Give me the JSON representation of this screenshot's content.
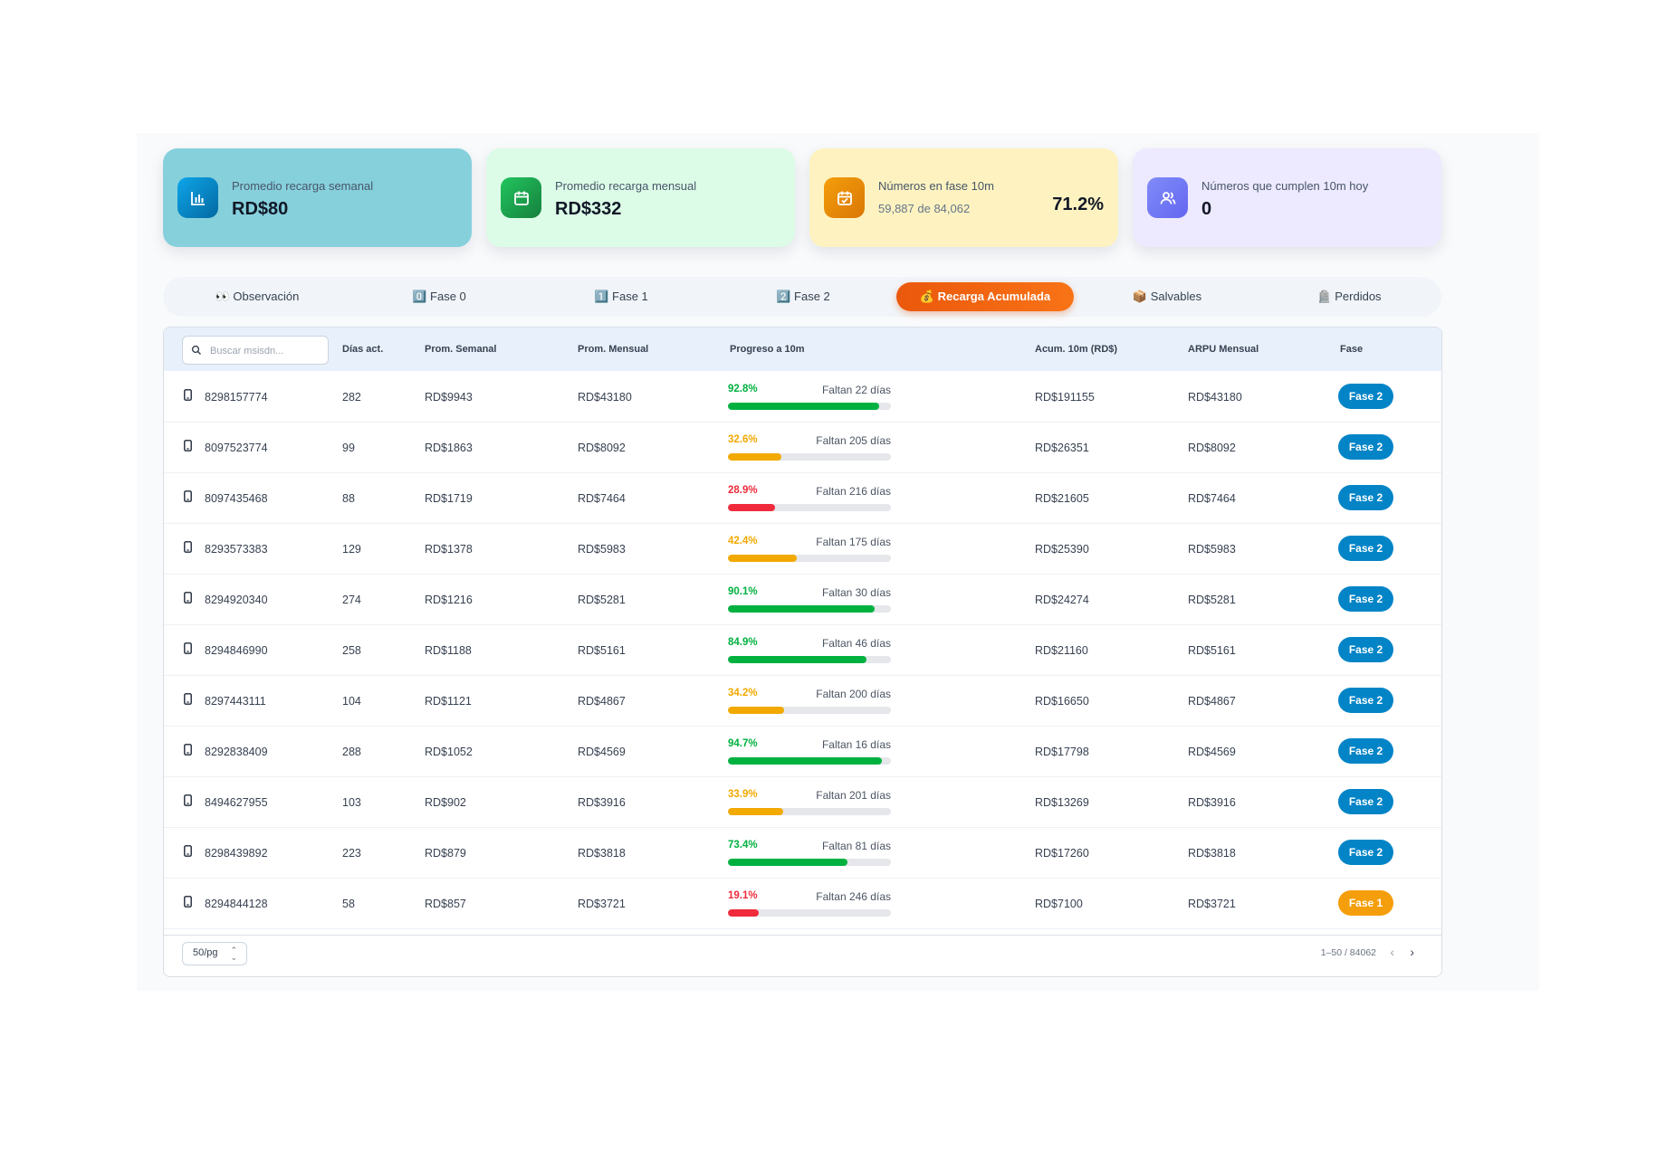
{
  "cards": [
    {
      "label": "Promedio recarga semanal",
      "value": "RD$80",
      "icon": "bar-chart-icon"
    },
    {
      "label": "Promedio recarga mensual",
      "value": "RD$332",
      "icon": "calendar-icon"
    },
    {
      "label": "Números en fase 10m",
      "sub": "59,887 de 84,062",
      "pct": "71.2%",
      "icon": "calendar-check-icon"
    },
    {
      "label": "Números que cumplen 10m hoy",
      "value": "0",
      "icon": "users-icon"
    }
  ],
  "tabs": [
    {
      "label": "👀 Observación",
      "active": false
    },
    {
      "label": "0️⃣ Fase 0",
      "active": false
    },
    {
      "label": "1️⃣ Fase 1",
      "active": false
    },
    {
      "label": "2️⃣ Fase 2",
      "active": false
    },
    {
      "label": "💰 Recarga Acumulada",
      "active": true
    },
    {
      "label": "📦 Salvables",
      "active": false
    },
    {
      "label": "🪦 Perdidos",
      "active": false
    }
  ],
  "search": {
    "placeholder": "Buscar msisdn..."
  },
  "columns": {
    "dias": "Días act.",
    "semanal": "Prom. Semanal",
    "mensual": "Prom. Mensual",
    "progreso": "Progreso a 10m",
    "acum": "Acum. 10m (RD$)",
    "arpu": "ARPU Mensual",
    "fase": "Fase"
  },
  "colors": {
    "green": "#00b140",
    "amber": "#f2a900",
    "red": "#ef2b3c",
    "fase2": "#0284c7",
    "fase1": "#f59e0b",
    "accent": "#f97316"
  },
  "rows": [
    {
      "msisdn": "8298157774",
      "dias": "282",
      "semanal": "RD$9943",
      "mensual": "RD$43180",
      "pct": "92.8%",
      "progress": 92.8,
      "faltan": "Faltan 22 días",
      "acum": "RD$191155",
      "arpu": "RD$43180",
      "fase": "Fase 2"
    },
    {
      "msisdn": "8097523774",
      "dias": "99",
      "semanal": "RD$1863",
      "mensual": "RD$8092",
      "pct": "32.6%",
      "progress": 32.6,
      "faltan": "Faltan 205 días",
      "acum": "RD$26351",
      "arpu": "RD$8092",
      "fase": "Fase 2"
    },
    {
      "msisdn": "8097435468",
      "dias": "88",
      "semanal": "RD$1719",
      "mensual": "RD$7464",
      "pct": "28.9%",
      "progress": 28.9,
      "faltan": "Faltan 216 días",
      "acum": "RD$21605",
      "arpu": "RD$7464",
      "fase": "Fase 2"
    },
    {
      "msisdn": "8293573383",
      "dias": "129",
      "semanal": "RD$1378",
      "mensual": "RD$5983",
      "pct": "42.4%",
      "progress": 42.4,
      "faltan": "Faltan 175 días",
      "acum": "RD$25390",
      "arpu": "RD$5983",
      "fase": "Fase 2"
    },
    {
      "msisdn": "8294920340",
      "dias": "274",
      "semanal": "RD$1216",
      "mensual": "RD$5281",
      "pct": "90.1%",
      "progress": 90.1,
      "faltan": "Faltan 30 días",
      "acum": "RD$24274",
      "arpu": "RD$5281",
      "fase": "Fase 2"
    },
    {
      "msisdn": "8294846990",
      "dias": "258",
      "semanal": "RD$1188",
      "mensual": "RD$5161",
      "pct": "84.9%",
      "progress": 84.9,
      "faltan": "Faltan 46 días",
      "acum": "RD$21160",
      "arpu": "RD$5161",
      "fase": "Fase 2"
    },
    {
      "msisdn": "8297443111",
      "dias": "104",
      "semanal": "RD$1121",
      "mensual": "RD$4867",
      "pct": "34.2%",
      "progress": 34.2,
      "faltan": "Faltan 200 días",
      "acum": "RD$16650",
      "arpu": "RD$4867",
      "fase": "Fase 2"
    },
    {
      "msisdn": "8292838409",
      "dias": "288",
      "semanal": "RD$1052",
      "mensual": "RD$4569",
      "pct": "94.7%",
      "progress": 94.7,
      "faltan": "Faltan 16 días",
      "acum": "RD$17798",
      "arpu": "RD$4569",
      "fase": "Fase 2"
    },
    {
      "msisdn": "8494627955",
      "dias": "103",
      "semanal": "RD$902",
      "mensual": "RD$3916",
      "pct": "33.9%",
      "progress": 33.9,
      "faltan": "Faltan 201 días",
      "acum": "RD$13269",
      "arpu": "RD$3916",
      "fase": "Fase 2"
    },
    {
      "msisdn": "8298439892",
      "dias": "223",
      "semanal": "RD$879",
      "mensual": "RD$3818",
      "pct": "73.4%",
      "progress": 73.4,
      "faltan": "Faltan 81 días",
      "acum": "RD$17260",
      "arpu": "RD$3818",
      "fase": "Fase 2"
    },
    {
      "msisdn": "8294844128",
      "dias": "58",
      "semanal": "RD$857",
      "mensual": "RD$3721",
      "pct": "19.1%",
      "progress": 19.1,
      "faltan": "Faltan 246 días",
      "acum": "RD$7100",
      "arpu": "RD$3721",
      "fase": "Fase 1"
    }
  ],
  "footer": {
    "per_page": "50/pg",
    "range": "1–50 / 84062"
  }
}
